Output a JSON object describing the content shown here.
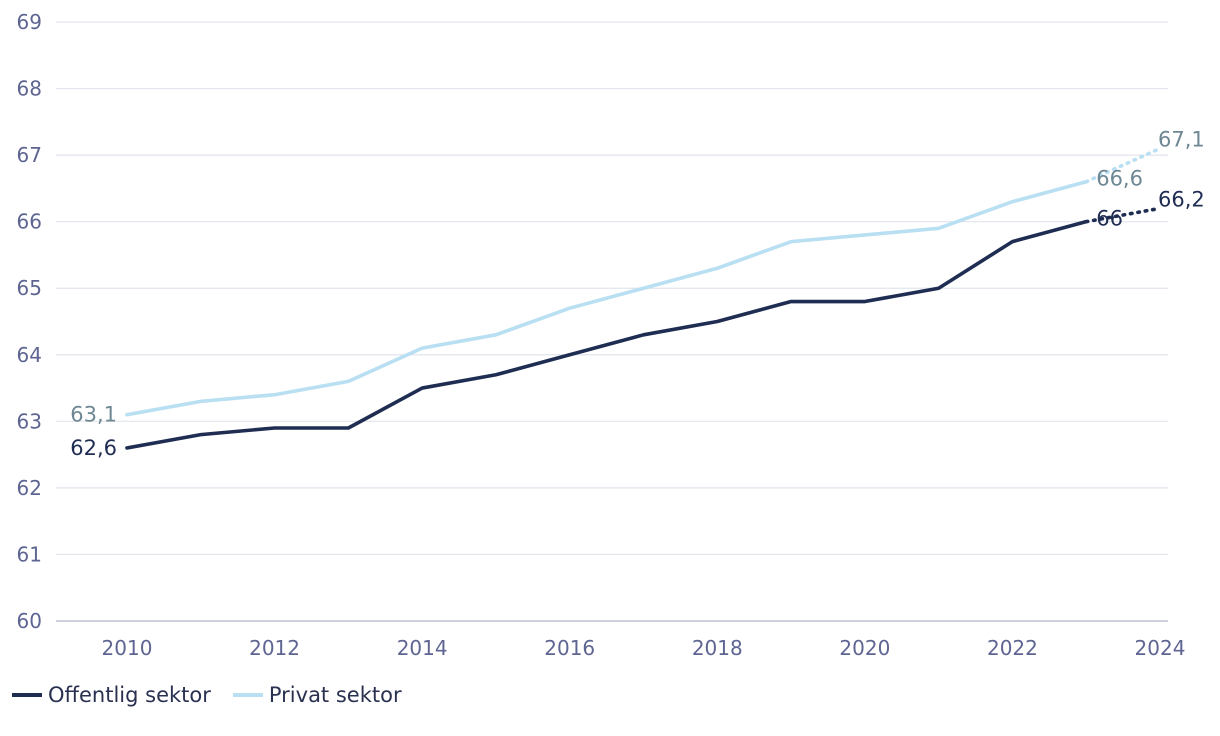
{
  "chart_data": {
    "type": "line",
    "x": [
      2010,
      2011,
      2012,
      2013,
      2014,
      2015,
      2016,
      2017,
      2018,
      2019,
      2020,
      2021,
      2022,
      2023
    ],
    "projection_x": [
      2023,
      2024
    ],
    "series": [
      {
        "name": "Offentlig sektor",
        "color": "#1f2d52",
        "label_color": "#1f2d52",
        "values": [
          62.6,
          62.8,
          62.9,
          62.9,
          63.5,
          63.7,
          64.0,
          64.3,
          64.5,
          64.8,
          64.8,
          65.0,
          65.7,
          66.0
        ],
        "projection": [
          66.0,
          66.2
        ],
        "labels": [
          {
            "x": 2010,
            "y": 62.6,
            "text": "62,6"
          },
          {
            "x": 2023,
            "y": 66.0,
            "text": "66"
          },
          {
            "x": 2024,
            "y": 66.2,
            "text": "66,2"
          }
        ]
      },
      {
        "name": "Privat sektor",
        "color": "#b9dff2",
        "label_color": "#6e8794",
        "values": [
          63.1,
          63.3,
          63.4,
          63.6,
          64.1,
          64.3,
          64.7,
          65.0,
          65.3,
          65.7,
          65.8,
          65.9,
          66.3,
          66.6
        ],
        "projection": [
          66.6,
          67.1
        ],
        "labels": [
          {
            "x": 2010,
            "y": 63.1,
            "text": "63,1"
          },
          {
            "x": 2023,
            "y": 66.6,
            "text": "66,6"
          },
          {
            "x": 2024,
            "y": 67.1,
            "text": "67,1"
          }
        ]
      }
    ],
    "ylim": [
      60,
      69
    ],
    "yticks": [
      "60",
      "61",
      "62",
      "63",
      "64",
      "65",
      "66",
      "67",
      "68",
      "69"
    ],
    "xticks": [
      "2010",
      "2012",
      "2014",
      "2016",
      "2018",
      "2020",
      "2022",
      "2024"
    ],
    "xlim": [
      2009,
      2024.3
    ],
    "title": "",
    "xlabel": "",
    "ylabel": "",
    "grid": true,
    "legend_position": "bottom-left",
    "colors": {
      "grid": "#e3e4ee",
      "tick_text": "#5f6592",
      "axis_line": "#b0b4c9"
    }
  }
}
